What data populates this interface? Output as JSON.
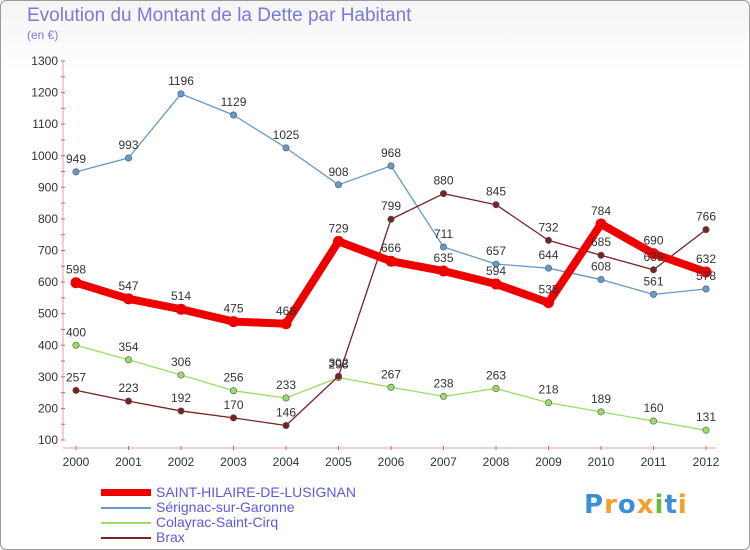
{
  "title": "Evolution du Montant de la Dette par Habitant",
  "subtitle": "(en €)",
  "logo": "Proxiti",
  "chart_data": {
    "type": "line",
    "title": "Evolution du Montant de la Dette par Habitant",
    "subtitle": "(en €)",
    "ylim": [
      100,
      1300
    ],
    "yticks": [
      100,
      200,
      300,
      400,
      500,
      600,
      700,
      800,
      900,
      1000,
      1100,
      1200,
      1300
    ],
    "x": [
      "2000",
      "2001",
      "2002",
      "2003",
      "2004",
      "2005",
      "2006",
      "2007",
      "2008",
      "2009",
      "2010",
      "2011",
      "2012"
    ],
    "grid": false,
    "legend_position": "bottom-left",
    "series": [
      {
        "name": "SAINT-HILAIRE-DE-LUSIGNAN",
        "color": "#ee0000",
        "values": [
          598,
          547,
          514,
          475,
          468,
          729,
          666,
          635,
          594,
          535,
          784,
          690,
          632
        ],
        "labels": [
          "598",
          "547",
          "514",
          "475",
          "468",
          "729",
          "666",
          "635",
          "594",
          "535",
          "784",
          "690",
          "632"
        ]
      },
      {
        "name": "Sérignac-sur-Garonne",
        "color": "#6699cc",
        "values": [
          949,
          993,
          1196,
          1129,
          1025,
          908,
          968,
          711,
          657,
          644,
          608,
          561,
          578
        ],
        "labels": [
          "949",
          "993",
          "1196",
          "1129",
          "1025",
          "908",
          "968",
          "711",
          "657",
          "644",
          "608",
          "561",
          "578"
        ]
      },
      {
        "name": "Colayrac-Saint-Cirq",
        "color": "#99dd66",
        "values": [
          400,
          354,
          306,
          256,
          233,
          298,
          267,
          238,
          263,
          218,
          189,
          160,
          131
        ],
        "labels": [
          "400",
          "354",
          "306",
          "256",
          "233",
          "298",
          "267",
          "238",
          "263",
          "218",
          "189",
          "160",
          "131"
        ]
      },
      {
        "name": "Brax",
        "color": "#7a2222",
        "values": [
          257,
          223,
          192,
          170,
          146,
          302,
          799,
          880,
          845,
          732,
          685,
          639,
          766
        ],
        "labels": [
          "257",
          "223",
          "192",
          "170",
          "146",
          "302",
          "799",
          "880",
          "845",
          "732",
          "685",
          "639",
          "766"
        ]
      }
    ]
  }
}
